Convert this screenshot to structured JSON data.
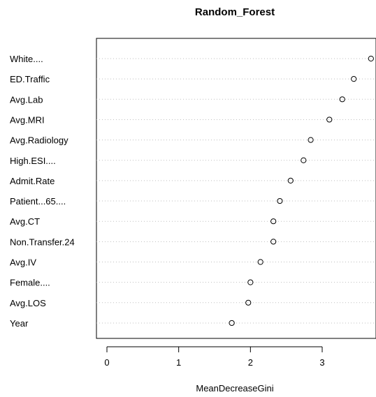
{
  "chart_data": {
    "type": "scatter",
    "title": "Random_Forest",
    "xlabel": "MeanDecreaseGini",
    "ylabel": "",
    "xlim": [
      -0.15,
      3.7
    ],
    "xticks": [
      "0",
      "1",
      "2",
      "3"
    ],
    "grid": "dotted horizontal",
    "categories": [
      "White....",
      "ED.Traffic",
      "Avg.Lab",
      "Avg.MRI",
      "Avg.Radiology",
      "High.ESI....",
      "Admit.Rate",
      "Patient...65....",
      "Avg.CT",
      "Non.Transfer.24",
      "Avg.IV",
      "Female....",
      "Avg.LOS",
      "Year"
    ],
    "values": [
      3.68,
      3.44,
      3.28,
      3.1,
      2.84,
      2.74,
      2.56,
      2.41,
      2.32,
      2.32,
      2.14,
      2.0,
      1.97,
      1.74
    ],
    "colors": {
      "axis": "#000000",
      "grid": "#bfbfbf",
      "point": "#000000"
    }
  }
}
